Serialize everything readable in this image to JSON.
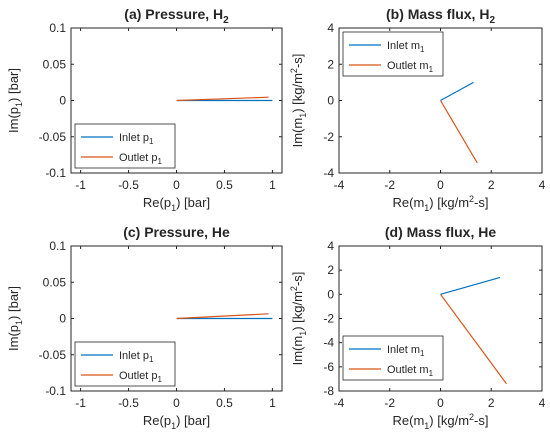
{
  "chart_data": [
    {
      "type": "line",
      "title": "(a) Pressure, H",
      "title_sub": "2",
      "xlabel": "Re(p",
      "xlabel_sub": "1",
      "xlabel_tail": ") [bar]",
      "ylabel": "Im(p",
      "ylabel_sub": "1",
      "ylabel_tail": ") [bar]",
      "xlim": [
        -1.1,
        1.1
      ],
      "ylim": [
        -0.1,
        0.1
      ],
      "xticks": [
        -1,
        -0.5,
        0,
        0.5,
        1
      ],
      "xtick_labels": [
        "-1",
        "-0.5",
        "0",
        "0.5",
        "1"
      ],
      "yticks": [
        -0.1,
        -0.05,
        0,
        0.05,
        0.1
      ],
      "ytick_labels": [
        "-0.1",
        "-0.05",
        "0",
        "0.05",
        "0.1"
      ],
      "legend": "bottom-left",
      "series": [
        {
          "name": "Inlet p",
          "name_sub": "1",
          "color": "#0072BD",
          "x": [
            0,
            1.0
          ],
          "y": [
            0,
            0
          ]
        },
        {
          "name": "Outlet p",
          "name_sub": "1",
          "color": "#D95319",
          "x": [
            0,
            0.96
          ],
          "y": [
            0,
            0.0045
          ]
        }
      ]
    },
    {
      "type": "line",
      "title": "(b) Mass flux, H",
      "title_sub": "2",
      "xlabel": "Re(m",
      "xlabel_sub": "1",
      "xlabel_tail": ") [kg/m",
      "xlabel_sup": "2",
      "xlabel_tail2": "-s]",
      "ylabel": "Im(m",
      "ylabel_sub": "1",
      "ylabel_tail": ") [kg/m",
      "ylabel_sup": "2",
      "ylabel_tail2": "-s]",
      "xlim": [
        -4,
        4
      ],
      "ylim": [
        -4,
        4
      ],
      "xticks": [
        -4,
        -2,
        0,
        2,
        4
      ],
      "xtick_labels": [
        "-4",
        "-2",
        "0",
        "2",
        "4"
      ],
      "yticks": [
        -4,
        -2,
        0,
        2,
        4
      ],
      "ytick_labels": [
        "-4",
        "-2",
        "0",
        "2",
        "4"
      ],
      "legend": "top-left",
      "series": [
        {
          "name": "Inlet m",
          "name_sub": "1",
          "color": "#0072BD",
          "x": [
            0,
            1.3
          ],
          "y": [
            0,
            1.0
          ]
        },
        {
          "name": "Outlet m",
          "name_sub": "1",
          "color": "#D95319",
          "x": [
            0,
            1.45
          ],
          "y": [
            0,
            -3.45
          ]
        }
      ]
    },
    {
      "type": "line",
      "title": "(c) Pressure, He",
      "title_sub": "",
      "xlabel": "Re(p",
      "xlabel_sub": "1",
      "xlabel_tail": ") [bar]",
      "ylabel": "Im(p",
      "ylabel_sub": "1",
      "ylabel_tail": ") [bar]",
      "xlim": [
        -1.1,
        1.1
      ],
      "ylim": [
        -0.1,
        0.1
      ],
      "xticks": [
        -1,
        -0.5,
        0,
        0.5,
        1
      ],
      "xtick_labels": [
        "-1",
        "-0.5",
        "0",
        "0.5",
        "1"
      ],
      "yticks": [
        -0.1,
        -0.05,
        0,
        0.05,
        0.1
      ],
      "ytick_labels": [
        "-0.1",
        "-0.05",
        "0",
        "0.05",
        "0.1"
      ],
      "legend": "bottom-left",
      "series": [
        {
          "name": "Inlet p",
          "name_sub": "1",
          "color": "#0072BD",
          "x": [
            0,
            1.0
          ],
          "y": [
            0,
            0
          ]
        },
        {
          "name": "Outlet p",
          "name_sub": "1",
          "color": "#D95319",
          "x": [
            0,
            0.96
          ],
          "y": [
            0,
            0.0065
          ]
        }
      ]
    },
    {
      "type": "line",
      "title": "(d) Mass flux, He",
      "title_sub": "",
      "xlabel": "Re(m",
      "xlabel_sub": "1",
      "xlabel_tail": ") [kg/m",
      "xlabel_sup": "2",
      "xlabel_tail2": "-s]",
      "ylabel": "Im(m",
      "ylabel_sub": "1",
      "ylabel_tail": ") [kg/m",
      "ylabel_sup": "2",
      "ylabel_tail2": "-s]",
      "xlim": [
        -4,
        4
      ],
      "ylim": [
        -8,
        4
      ],
      "xticks": [
        -4,
        -2,
        0,
        2,
        4
      ],
      "xtick_labels": [
        "-4",
        "-2",
        "0",
        "2",
        "4"
      ],
      "yticks": [
        -8,
        -6,
        -4,
        -2,
        0,
        2,
        4
      ],
      "ytick_labels": [
        "-8",
        "-6",
        "-4",
        "-2",
        "0",
        "2",
        "4"
      ],
      "legend": "top-right",
      "series": [
        {
          "name": "Inlet m",
          "name_sub": "1",
          "color": "#0072BD",
          "x": [
            0,
            2.35
          ],
          "y": [
            0,
            1.4
          ]
        },
        {
          "name": "Outlet m",
          "name_sub": "1",
          "color": "#D95319",
          "x": [
            0,
            2.6
          ],
          "y": [
            0,
            -7.4
          ]
        }
      ]
    }
  ]
}
